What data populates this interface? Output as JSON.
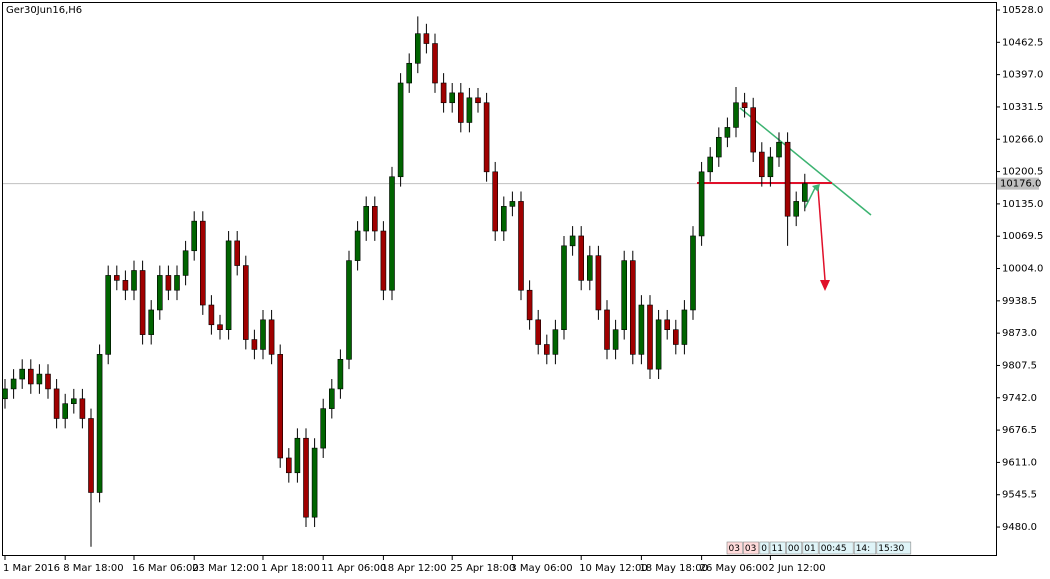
{
  "chart_data": {
    "type": "candlestick",
    "title": "Ger30Jun16,H6",
    "up_color": "#006400",
    "down_color": "#a00000",
    "ylim": [
      9421.3,
      10544.2
    ],
    "yticks": [
      {
        "value": 10528,
        "label": "10528.0"
      },
      {
        "value": 10462.5,
        "label": "10462.5"
      },
      {
        "value": 10397,
        "label": "10397.0"
      },
      {
        "value": 10331.5,
        "label": "10331.5"
      },
      {
        "value": 10266,
        "label": "10266.0"
      },
      {
        "value": 10200.5,
        "label": "10200.5"
      },
      {
        "value": 10135,
        "label": "10135.0"
      },
      {
        "value": 10069.5,
        "label": "10069.5"
      },
      {
        "value": 10004,
        "label": "10004.0"
      },
      {
        "value": 9938.5,
        "label": "9938.5"
      },
      {
        "value": 9873,
        "label": "9873.0"
      },
      {
        "value": 9807.5,
        "label": "9807.5"
      },
      {
        "value": 9742,
        "label": "9742.0"
      },
      {
        "value": 9676.5,
        "label": "9676.5"
      },
      {
        "value": 9611,
        "label": "9611.0"
      },
      {
        "value": 9545.5,
        "label": "9545.5"
      },
      {
        "value": 9480,
        "label": "9480.0"
      }
    ],
    "current_price": {
      "value": 10176,
      "label": "10176.0"
    },
    "categories": [
      "1 Mar 2016",
      null,
      null,
      null,
      null,
      null,
      null,
      "8 Mar 18:00",
      null,
      null,
      null,
      null,
      null,
      null,
      null,
      "16 Mar 06:00",
      null,
      null,
      null,
      null,
      null,
      null,
      "23 Mar 12:00",
      null,
      null,
      null,
      null,
      null,
      null,
      null,
      "1 Apr 18:00",
      null,
      null,
      null,
      null,
      null,
      null,
      "11 Apr 06:00",
      null,
      null,
      null,
      null,
      null,
      null,
      "18 Apr 12:00",
      null,
      null,
      null,
      null,
      null,
      null,
      null,
      "25 Apr 18:00",
      null,
      null,
      null,
      null,
      null,
      null,
      "3 May 06:00",
      null,
      null,
      null,
      null,
      null,
      null,
      null,
      "10 May 12:00",
      null,
      null,
      null,
      null,
      null,
      null,
      "18 May 18:00",
      null,
      null,
      null,
      null,
      null,
      null,
      "26 May 06:00",
      null,
      null,
      null,
      null,
      null,
      null,
      null,
      "2 Jun 12:00",
      null,
      null,
      null,
      null
    ],
    "open": [
      9740,
      9760,
      9780,
      9800,
      9770,
      9790,
      9760,
      9700,
      9730,
      9740,
      9700,
      9550,
      9830,
      9990,
      9980,
      9960,
      10000,
      9870,
      9920,
      9990,
      9960,
      9990,
      10040,
      10100,
      9930,
      9890,
      9880,
      10060,
      10010,
      9860,
      9840,
      9900,
      9830,
      9620,
      9590,
      9660,
      9500,
      9640,
      9720,
      9760,
      9820,
      10020,
      10080,
      10130,
      10080,
      9960,
      10190,
      10380,
      10420,
      10480,
      10460,
      10380,
      10340,
      10360,
      10300,
      10350,
      10340,
      10200,
      10080,
      10130,
      10140,
      9960,
      9900,
      9850,
      9830,
      9880,
      10050,
      10070,
      9980,
      10030,
      9920,
      9840,
      9880,
      10020,
      9830,
      9930,
      9800,
      9900,
      9880,
      9850,
      9920,
      10070,
      10200,
      10230,
      10270,
      10290,
      10340,
      10330,
      10240,
      10190,
      10230,
      10260,
      10110,
      10140
    ],
    "high": [
      9780,
      9800,
      9820,
      9820,
      9810,
      9810,
      9780,
      9750,
      9760,
      9760,
      9720,
      9850,
      10010,
      10010,
      10000,
      10020,
      10020,
      9940,
      10010,
      10010,
      10010,
      10060,
      10120,
      10120,
      9950,
      9910,
      10080,
      10080,
      10030,
      9880,
      9920,
      9920,
      9850,
      9640,
      9680,
      9680,
      9660,
      9740,
      9780,
      9840,
      10040,
      10100,
      10150,
      10150,
      10100,
      10210,
      10400,
      10440,
      10515,
      10500,
      10480,
      10400,
      10380,
      10380,
      10370,
      10370,
      10360,
      10220,
      10150,
      10160,
      10160,
      9980,
      9920,
      9870,
      9900,
      10070,
      10090,
      10090,
      10050,
      10050,
      9940,
      9900,
      10040,
      10040,
      9950,
      9950,
      9920,
      9920,
      9900,
      9940,
      10090,
      10220,
      10250,
      10290,
      10310,
      10372,
      10360,
      10350,
      10260,
      10250,
      10280,
      10280,
      10160,
      10196
    ],
    "low": [
      9720,
      9740,
      9760,
      9750,
      9750,
      9740,
      9680,
      9680,
      9710,
      9680,
      9440,
      9530,
      9810,
      9960,
      9940,
      9940,
      9850,
      9850,
      9900,
      9940,
      9940,
      9970,
      10020,
      9910,
      9870,
      9860,
      9860,
      9990,
      9840,
      9820,
      9820,
      9810,
      9600,
      9570,
      9570,
      9480,
      9480,
      9620,
      9700,
      9740,
      9800,
      10000,
      10060,
      10060,
      9940,
      9940,
      10170,
      10360,
      10400,
      10440,
      10360,
      10320,
      10320,
      10280,
      10280,
      10320,
      10180,
      10060,
      10060,
      10110,
      9940,
      9880,
      9830,
      9810,
      9810,
      9860,
      10030,
      9960,
      9960,
      9900,
      9820,
      9820,
      9860,
      9810,
      9810,
      9780,
      9780,
      9860,
      9830,
      9830,
      9900,
      10050,
      10180,
      10210,
      10250,
      10270,
      10310,
      10220,
      10170,
      10170,
      10210,
      10050,
      10090,
      10120
    ],
    "close": [
      9760,
      9780,
      9800,
      9770,
      9790,
      9760,
      9700,
      9730,
      9740,
      9700,
      9550,
      9830,
      9990,
      9980,
      9960,
      10000,
      9870,
      9920,
      9990,
      9960,
      9990,
      10040,
      10100,
      9930,
      9890,
      9880,
      10060,
      10010,
      9860,
      9840,
      9900,
      9830,
      9620,
      9590,
      9660,
      9500,
      9640,
      9720,
      9760,
      9820,
      10020,
      10080,
      10130,
      10080,
      9960,
      10190,
      10380,
      10420,
      10480,
      10460,
      10380,
      10340,
      10360,
      10300,
      10350,
      10340,
      10200,
      10080,
      10130,
      10140,
      9960,
      9900,
      9850,
      9830,
      9880,
      10050,
      10070,
      9980,
      10030,
      9920,
      9840,
      9880,
      10020,
      9830,
      9930,
      9800,
      9900,
      9880,
      9850,
      9920,
      10070,
      10200,
      10230,
      10270,
      10290,
      10340,
      10330,
      10240,
      10190,
      10230,
      10260,
      10110,
      10140,
      10176
    ],
    "timer": [
      "03",
      "03",
      "0",
      "11",
      "00",
      "01",
      "00:45",
      "14:",
      "15:30"
    ]
  }
}
